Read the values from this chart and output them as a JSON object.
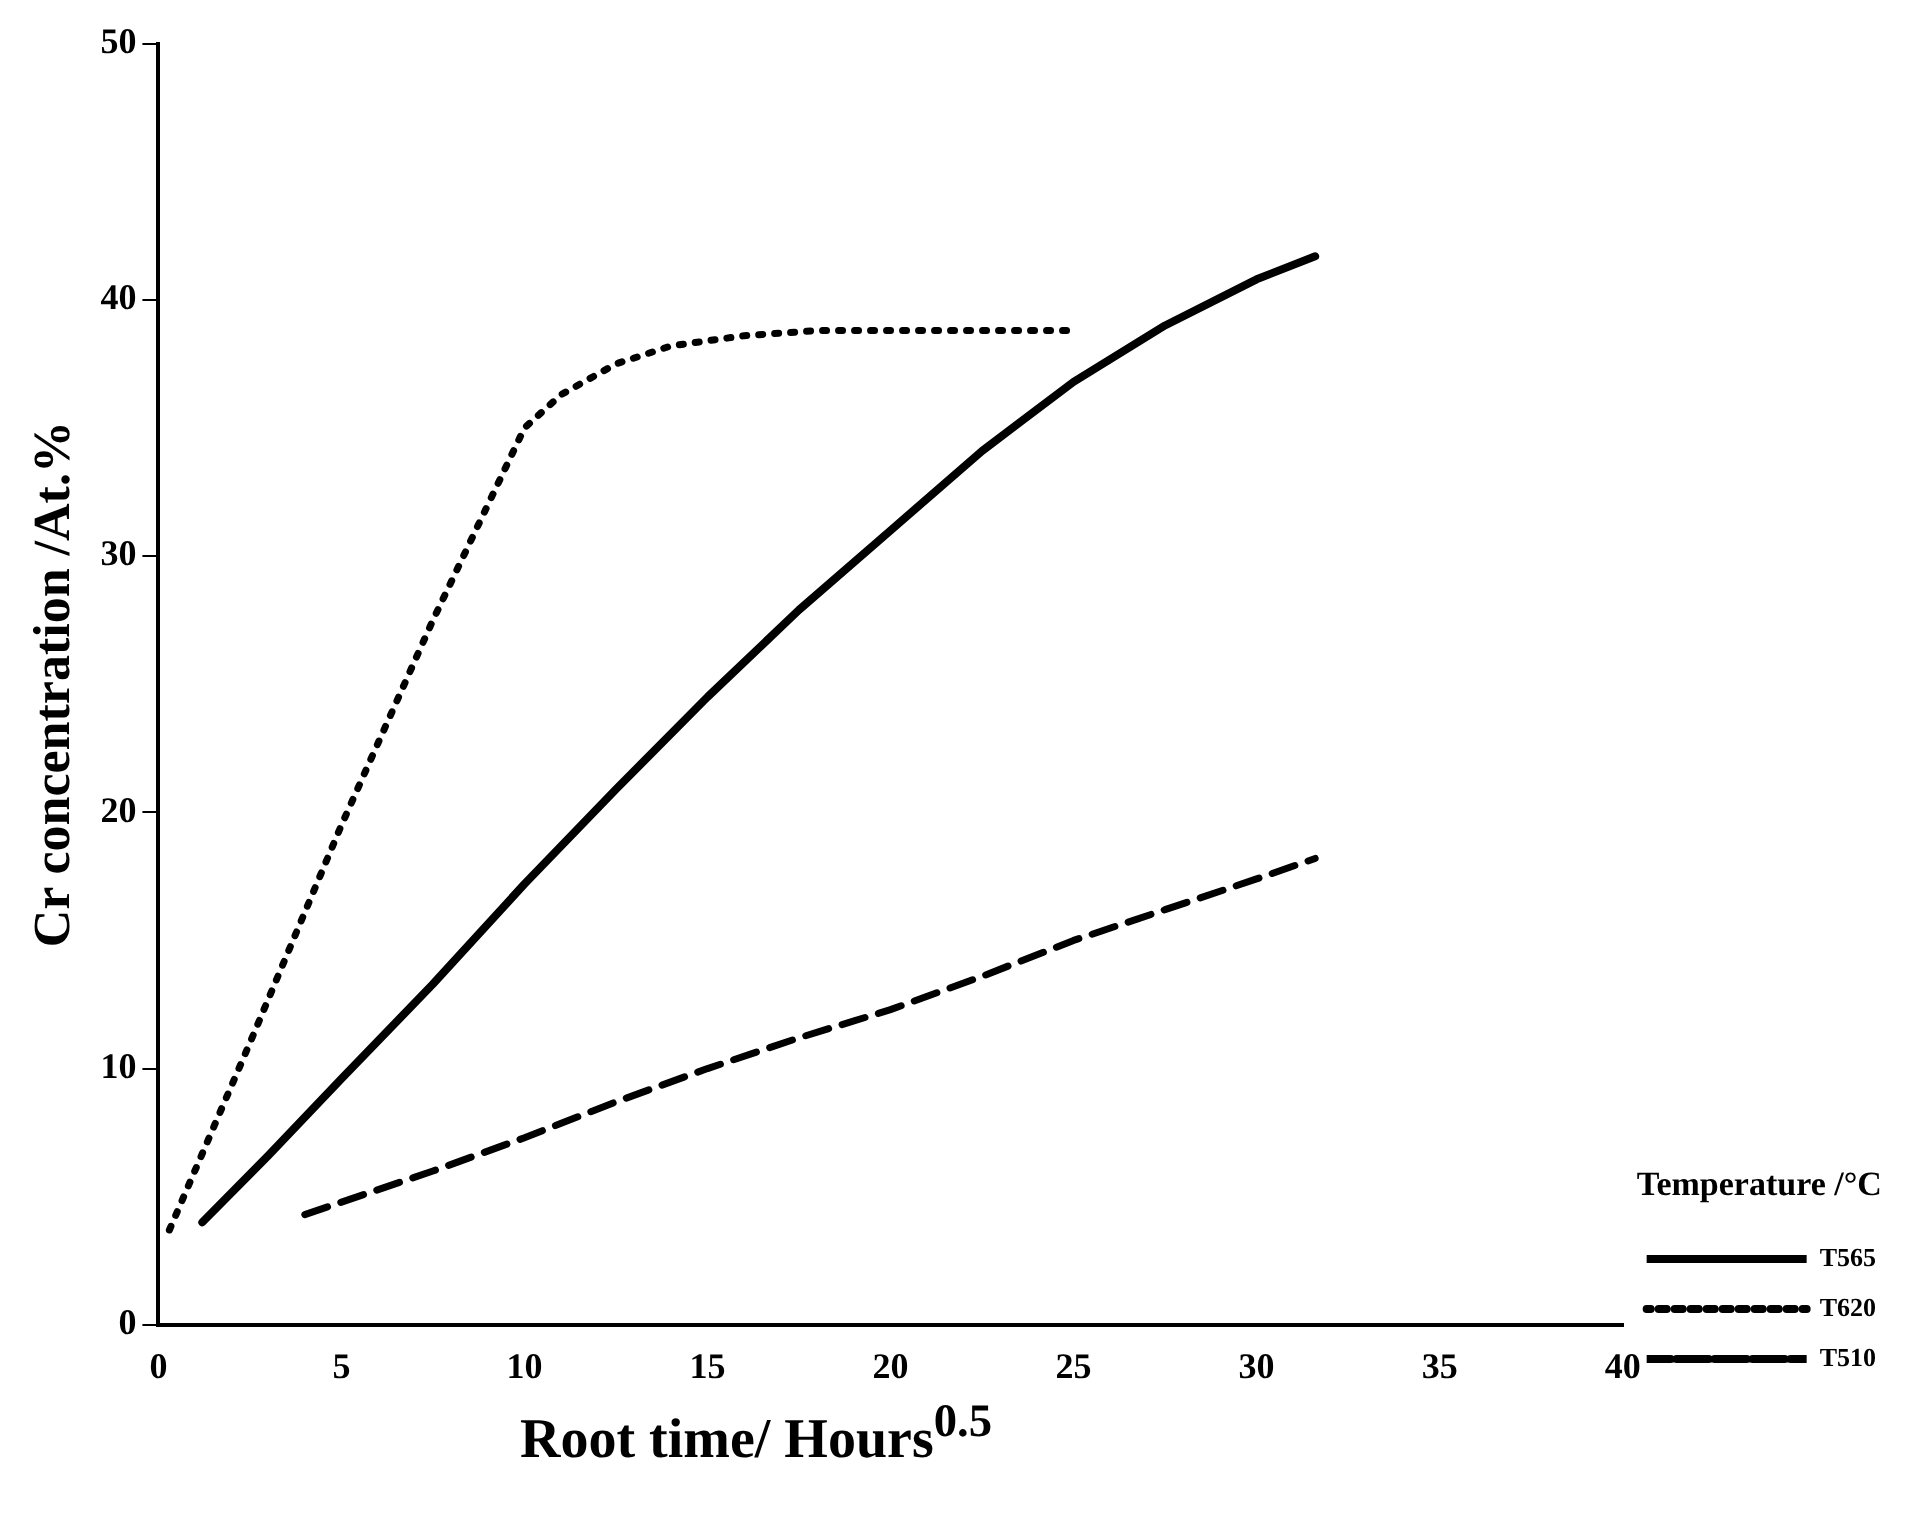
{
  "chart_data": {
    "type": "line",
    "xlabel": "Root time/ Hours$^{0.5}$",
    "ylabel": "Cr concentration /At.%",
    "legend_title": "Temperature /°C",
    "xlim": [
      0,
      40
    ],
    "xticks": [
      0,
      5,
      10,
      15,
      20,
      25,
      30,
      35,
      40
    ],
    "ylim": [
      0,
      50
    ],
    "yticks": [
      0,
      10,
      20,
      30,
      40,
      50
    ],
    "grid": false,
    "legend": "bottom right",
    "marker": "none",
    "series": [
      {
        "name": "T565",
        "color": "#000000",
        "line_style": "solid",
        "x": [
          1.2,
          3,
          5,
          7.5,
          10,
          12.5,
          15,
          17.5,
          20,
          22.5,
          25,
          27.5,
          30,
          31.6
        ],
        "values": [
          4,
          6.6,
          9.6,
          13.3,
          17.2,
          20.9,
          24.5,
          27.9,
          31,
          34.1,
          36.8,
          39,
          40.8,
          41.7
        ]
      },
      {
        "name": "T620",
        "color": "#000000",
        "line_style": "dotted",
        "x": [
          0.3,
          2.5,
          5,
          7.5,
          10,
          11,
          12.5,
          14,
          16,
          18,
          20,
          25
        ],
        "values": [
          3.7,
          11,
          19.5,
          27.5,
          35,
          36.3,
          37.5,
          38.2,
          38.6,
          38.8,
          38.8,
          38.8
        ]
      },
      {
        "name": "T510",
        "color": "#000000",
        "line_style": "dashed",
        "x": [
          4,
          7.5,
          10,
          12.5,
          15,
          17.5,
          20,
          22.5,
          25,
          27.5,
          30,
          31.6
        ],
        "values": [
          4.3,
          6,
          7.3,
          8.7,
          10,
          11.2,
          12.3,
          13.6,
          15,
          16.2,
          17.4,
          18.2
        ]
      }
    ]
  }
}
